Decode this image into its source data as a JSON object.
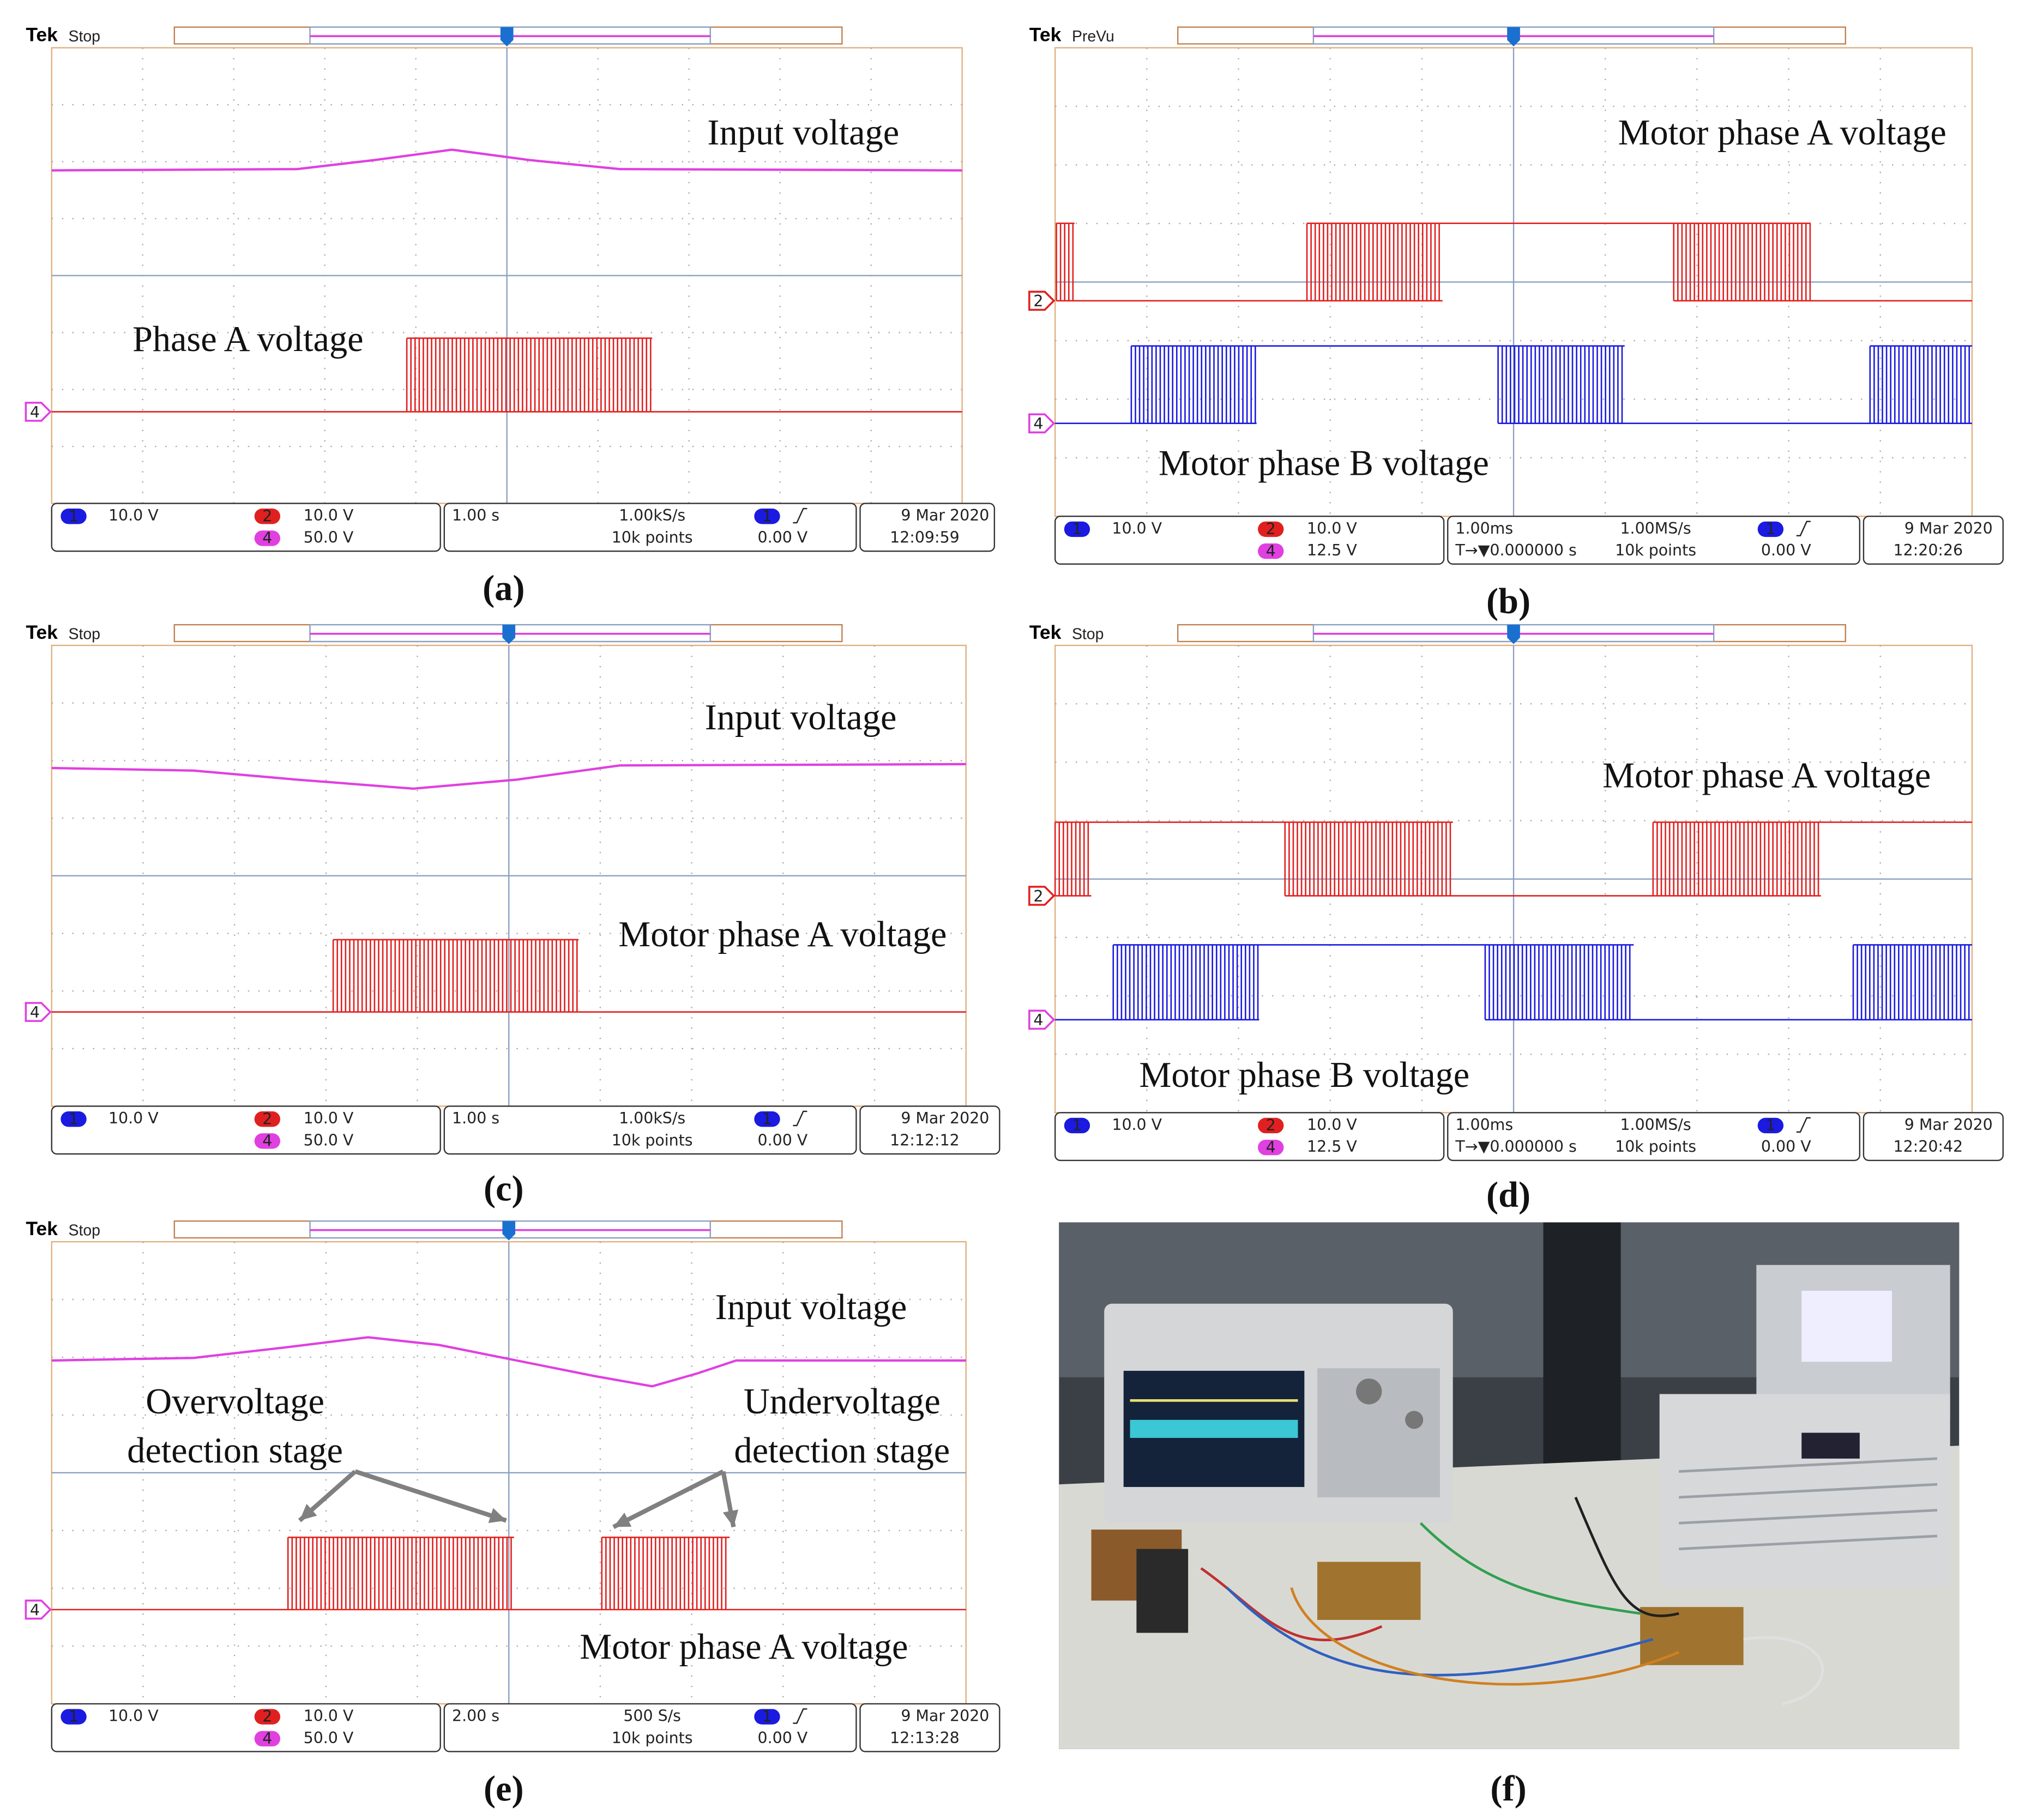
{
  "panels": [
    {
      "brand": "Tek",
      "state": "Stop",
      "annotations": [
        "Input voltage",
        "Phase A voltage"
      ],
      "markers": [
        "4"
      ],
      "status": {
        "ch1": "1",
        "ch1_scale": "10.0 V",
        "ch2": "2",
        "ch2_scale": "10.0 V",
        "ch4": "4",
        "ch4_scale": "50.0 V",
        "timebase": "1.00 s",
        "rate": "1.00kS/s",
        "points": "10k points",
        "trig_ch": "1",
        "trig_level": "0.00 V",
        "date": "9 Mar  2020",
        "time": "12:09:59"
      },
      "caption": "(a)"
    },
    {
      "brand": "Tek",
      "state": "PreVu",
      "annotations": [
        "Motor phase A voltage",
        "Motor phase B voltage"
      ],
      "markers": [
        "2",
        "4"
      ],
      "status": {
        "ch1": "1",
        "ch1_scale": "10.0 V",
        "ch2": "2",
        "ch2_scale": "10.0 V",
        "ch4": "4",
        "ch4_scale": "12.5 V",
        "timebase": "1.00ms",
        "offset": "T→▼0.000000 s",
        "rate": "1.00MS/s",
        "points": "10k points",
        "trig_ch": "1",
        "trig_level": "0.00 V",
        "date": "9 Mar  2020",
        "time": "12:20:26"
      },
      "caption": "(b)"
    },
    {
      "brand": "Tek",
      "state": "Stop",
      "annotations": [
        "Input voltage",
        "Motor phase A voltage"
      ],
      "markers": [
        "4"
      ],
      "status": {
        "ch1": "1",
        "ch1_scale": "10.0 V",
        "ch2": "2",
        "ch2_scale": "10.0 V",
        "ch4": "4",
        "ch4_scale": "50.0 V",
        "timebase": "1.00 s",
        "rate": "1.00kS/s",
        "points": "10k points",
        "trig_ch": "1",
        "trig_level": "0.00 V",
        "date": "9 Mar  2020",
        "time": "12:12:12"
      },
      "caption": "(c)"
    },
    {
      "brand": "Tek",
      "state": "Stop",
      "annotations": [
        "Motor phase A voltage",
        "Motor phase B voltage"
      ],
      "markers": [
        "2",
        "4"
      ],
      "status": {
        "ch1": "1",
        "ch1_scale": "10.0 V",
        "ch2": "2",
        "ch2_scale": "10.0 V",
        "ch4": "4",
        "ch4_scale": "12.5 V",
        "timebase": "1.00ms",
        "offset": "T→▼0.000000 s",
        "rate": "1.00MS/s",
        "points": "10k points",
        "trig_ch": "1",
        "trig_level": "0.00 V",
        "date": "9 Mar  2020",
        "time": "12:20:42"
      },
      "caption": "(d)"
    },
    {
      "brand": "Tek",
      "state": "Stop",
      "annotations": [
        "Input voltage",
        "Overvoltage",
        "detection stage",
        "Undervoltage",
        "detection stage",
        "Motor phase A voltage"
      ],
      "markers": [
        "4"
      ],
      "status": {
        "ch1": "1",
        "ch1_scale": "10.0 V",
        "ch2": "2",
        "ch2_scale": "10.0 V",
        "ch4": "4",
        "ch4_scale": "50.0 V",
        "timebase": "2.00 s",
        "rate": "500 S/s",
        "points": "10k points",
        "trig_ch": "1",
        "trig_level": "0.00 V",
        "date": "9 Mar  2020",
        "time": "12:13:28"
      },
      "caption": "(e)"
    }
  ],
  "photo": {
    "caption": "(f)"
  }
}
